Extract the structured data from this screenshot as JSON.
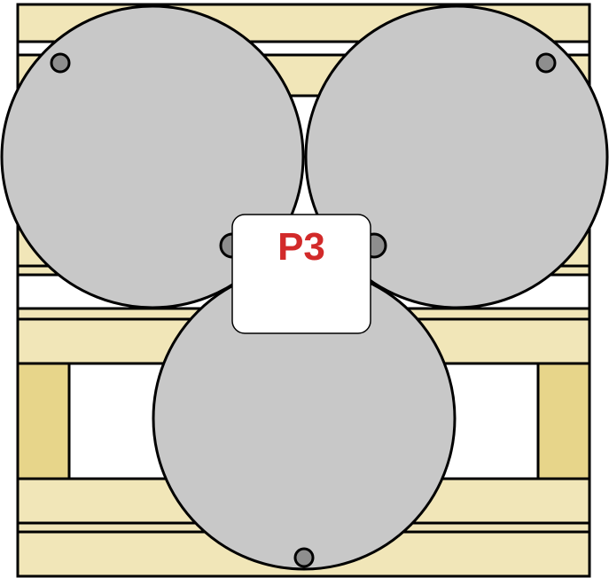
{
  "diagram": {
    "label": "P3",
    "colors": {
      "pallet_wood": "#f1e6b8",
      "pallet_block": "#e7d58a",
      "outline": "#000000",
      "barrel_fill": "#c8c8c8",
      "bung_fill": "#8e8e8e",
      "label_box": "#ffffff",
      "label_text": "#d22a2a"
    }
  }
}
